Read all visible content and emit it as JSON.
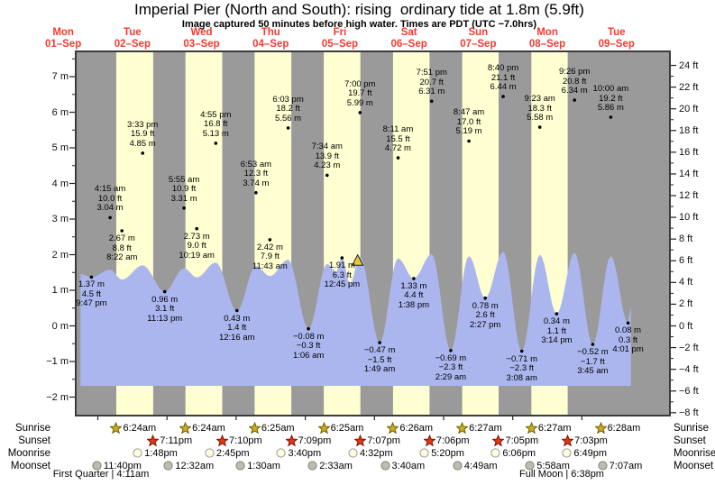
{
  "title": "Imperial Pier (North and South): rising  ordinary tide at 1.8m (5.9ft)",
  "subtitle": "Image captured 50 minutes before high water. Times are PDT (UTC −7.0hrs)",
  "colors": {
    "night_band": "#9a9a9a",
    "day_band": "#ffffd2",
    "tide_fill": "#abb6ef",
    "date_red": "#f23b30",
    "sun_star": "#cfae1d",
    "sunset_star": "#e23614",
    "moonrise_fill": "#ffffe0",
    "moonset_fill": "#bdbdae",
    "now_marker": "#e9c93a"
  },
  "chart_data": {
    "type": "area",
    "title": "Imperial Pier (North and South): rising  ordinary tide at 1.8m (5.9ft)",
    "ylabel_left": "meters",
    "ylabel_right": "feet",
    "ylim_m": [
      -2.4,
      7.7
    ],
    "grid": false,
    "x_axis_days": [
      {
        "name": "Mon",
        "date": "01–Sep"
      },
      {
        "name": "Tue",
        "date": "02–Sep"
      },
      {
        "name": "Wed",
        "date": "03–Sep"
      },
      {
        "name": "Thu",
        "date": "04–Sep"
      },
      {
        "name": "Fri",
        "date": "05–Sep"
      },
      {
        "name": "Sat",
        "date": "06–Sep"
      },
      {
        "name": "Sun",
        "date": "07–Sep"
      },
      {
        "name": "Mon",
        "date": "08–Sep"
      },
      {
        "name": "Tue",
        "date": "09–Sep"
      }
    ],
    "y_axis_m": [
      {
        "v": 7,
        "label": "7 m"
      },
      {
        "v": 6,
        "label": "6 m"
      },
      {
        "v": 5,
        "label": "5 m"
      },
      {
        "v": 4,
        "label": "4 m"
      },
      {
        "v": 3,
        "label": "3 m"
      },
      {
        "v": 2,
        "label": "2 m"
      },
      {
        "v": 1,
        "label": "1 m"
      },
      {
        "v": 0,
        "label": "0 m"
      },
      {
        "v": -1,
        "label": "−1 m"
      },
      {
        "v": -2,
        "label": "−2 m"
      }
    ],
    "y_axis_ft": [
      {
        "v": 24,
        "label": "24 ft"
      },
      {
        "v": 22,
        "label": "22 ft"
      },
      {
        "v": 20,
        "label": "20 ft"
      },
      {
        "v": 18,
        "label": "18 ft"
      },
      {
        "v": 16,
        "label": "16 ft"
      },
      {
        "v": 14,
        "label": "14 ft"
      },
      {
        "v": 12,
        "label": "12 ft"
      },
      {
        "v": 10,
        "label": "10 ft"
      },
      {
        "v": 8,
        "label": "8 ft"
      },
      {
        "v": 6,
        "label": "6 ft"
      },
      {
        "v": 4,
        "label": "4 ft"
      },
      {
        "v": 2,
        "label": "2 ft"
      },
      {
        "v": 0,
        "label": "0 ft"
      },
      {
        "v": -2,
        "label": "−2 ft"
      },
      {
        "v": -4,
        "label": "−4 ft"
      },
      {
        "v": -6,
        "label": "−6 ft"
      },
      {
        "v": -8,
        "label": "−8 ft"
      }
    ],
    "points": [
      {
        "day": 1,
        "time": "9:47 pm",
        "ft_label": "4.5 ft",
        "m_label": "1.37 m",
        "m": 1.37,
        "kind": "L"
      },
      {
        "day": 2,
        "time": "4:15 am",
        "ft_label": "10.0 ft",
        "m_label": "3.04 m",
        "m": 3.04,
        "kind": "H"
      },
      {
        "day": 2,
        "time": "8:22 am",
        "ft_label": "8.8 ft",
        "m_label": "2.67 m",
        "m": 2.67,
        "kind": "L"
      },
      {
        "day": 2,
        "time": "3:33 pm",
        "ft_label": "15.9 ft",
        "m_label": "4.85 m",
        "m": 4.85,
        "kind": "H"
      },
      {
        "day": 2,
        "time": "11:13 pm",
        "ft_label": "3.1 ft",
        "m_label": "0.96 m",
        "m": 0.96,
        "kind": "L"
      },
      {
        "day": 3,
        "time": "5:55 am",
        "ft_label": "10.9 ft",
        "m_label": "3.31 m",
        "m": 3.31,
        "kind": "H"
      },
      {
        "day": 3,
        "time": "10:19 am",
        "ft_label": "9.0 ft",
        "m_label": "2.73 m",
        "m": 2.73,
        "kind": "L"
      },
      {
        "day": 3,
        "time": "4:55 pm",
        "ft_label": "16.8 ft",
        "m_label": "5.13 m",
        "m": 5.13,
        "kind": "H"
      },
      {
        "day": 4,
        "time": "12:16 am",
        "ft_label": "1.4 ft",
        "m_label": "0.43 m",
        "m": 0.43,
        "kind": "L"
      },
      {
        "day": 4,
        "time": "6:53 am",
        "ft_label": "12.3 ft",
        "m_label": "3.74 m",
        "m": 3.74,
        "kind": "H"
      },
      {
        "day": 4,
        "time": "11:43 am",
        "ft_label": "7.9 ft",
        "m_label": "2.42 m",
        "m": 2.42,
        "kind": "L"
      },
      {
        "day": 4,
        "time": "6:03 pm",
        "ft_label": "18.2 ft",
        "m_label": "5.56 m",
        "m": 5.56,
        "kind": "H"
      },
      {
        "day": 5,
        "time": "1:06 am",
        "ft_label": "−0.3 ft",
        "m_label": "−0.08 m",
        "m": -0.08,
        "kind": "L"
      },
      {
        "day": 5,
        "time": "7:34 am",
        "ft_label": "13.9 ft",
        "m_label": "4.23 m",
        "m": 4.23,
        "kind": "H"
      },
      {
        "day": 5,
        "time": "12:45 pm",
        "ft_label": "6.3 ft",
        "m_label": "1.91 m",
        "m": 1.91,
        "kind": "L"
      },
      {
        "day": 5,
        "time": "7:00 pm",
        "ft_label": "19.7 ft",
        "m_label": "5.99 m",
        "m": 5.99,
        "kind": "H"
      },
      {
        "day": 6,
        "time": "1:49 am",
        "ft_label": "−1.5 ft",
        "m_label": "−0.47 m",
        "m": -0.47,
        "kind": "L"
      },
      {
        "day": 6,
        "time": "8:11 am",
        "ft_label": "15.5 ft",
        "m_label": "4.72 m",
        "m": 4.72,
        "kind": "H"
      },
      {
        "day": 6,
        "time": "1:38 pm",
        "ft_label": "4.4 ft",
        "m_label": "1.33 m",
        "m": 1.33,
        "kind": "L"
      },
      {
        "day": 6,
        "time": "7:51 pm",
        "ft_label": "20.7 ft",
        "m_label": "6.31 m",
        "m": 6.31,
        "kind": "H"
      },
      {
        "day": 7,
        "time": "2:29 am",
        "ft_label": "−2.3 ft",
        "m_label": "−0.69 m",
        "m": -0.69,
        "kind": "L"
      },
      {
        "day": 7,
        "time": "8:47 am",
        "ft_label": "17.0 ft",
        "m_label": "5.19 m",
        "m": 5.19,
        "kind": "H"
      },
      {
        "day": 7,
        "time": "2:27 pm",
        "ft_label": "2.6 ft",
        "m_label": "0.78 m",
        "m": 0.78,
        "kind": "L"
      },
      {
        "day": 7,
        "time": "8:40 pm",
        "ft_label": "21.1 ft",
        "m_label": "6.44 m",
        "m": 6.44,
        "kind": "H"
      },
      {
        "day": 8,
        "time": "3:08 am",
        "ft_label": "−2.3 ft",
        "m_label": "−0.71 m",
        "m": -0.71,
        "kind": "L"
      },
      {
        "day": 8,
        "time": "9:23 am",
        "ft_label": "18.3 ft",
        "m_label": "5.58 m",
        "m": 5.58,
        "kind": "H"
      },
      {
        "day": 8,
        "time": "3:14 pm",
        "ft_label": "1.1 ft",
        "m_label": "0.34 m",
        "m": 0.34,
        "kind": "L"
      },
      {
        "day": 8,
        "time": "9:26 pm",
        "ft_label": "20.8 ft",
        "m_label": "6.34 m",
        "m": 6.34,
        "kind": "H"
      },
      {
        "day": 9,
        "time": "3:45 am",
        "ft_label": "−1.7 ft",
        "m_label": "−0.52 m",
        "m": -0.52,
        "kind": "L"
      },
      {
        "day": 9,
        "time": "10:00 am",
        "ft_label": "19.2 ft",
        "m_label": "5.86 m",
        "m": 5.86,
        "kind": "H"
      },
      {
        "day": 9,
        "time": "4:01 pm",
        "ft_label": "0.3 ft",
        "m_label": "0.08 m",
        "m": 0.08,
        "kind": "L"
      }
    ],
    "curve_profile": [
      [
        1,
        18.0,
        1.45
      ],
      [
        1,
        21.78,
        1.37
      ],
      [
        2,
        4.25,
        1.58
      ],
      [
        2,
        8.37,
        1.3
      ],
      [
        2,
        15.55,
        1.7
      ],
      [
        2,
        23.22,
        0.96
      ],
      [
        3,
        5.92,
        1.62
      ],
      [
        3,
        10.32,
        1.36
      ],
      [
        3,
        16.92,
        1.78
      ],
      [
        4,
        0.27,
        0.43
      ],
      [
        4,
        6.88,
        1.68
      ],
      [
        4,
        11.72,
        1.4
      ],
      [
        4,
        18.05,
        1.86
      ],
      [
        5,
        1.1,
        -0.08
      ],
      [
        5,
        7.57,
        1.74
      ],
      [
        5,
        10.8,
        1.52
      ],
      [
        5,
        12.75,
        1.93
      ],
      [
        5,
        15.5,
        1.18
      ],
      [
        5,
        19.0,
        1.95
      ],
      [
        6,
        1.82,
        -0.47
      ],
      [
        6,
        8.18,
        1.9
      ],
      [
        6,
        13.63,
        1.33
      ],
      [
        6,
        19.85,
        2.02
      ],
      [
        7,
        2.48,
        -0.69
      ],
      [
        7,
        8.78,
        1.96
      ],
      [
        7,
        14.45,
        0.78
      ],
      [
        7,
        20.67,
        2.08
      ],
      [
        8,
        3.13,
        -0.71
      ],
      [
        8,
        9.38,
        2.0
      ],
      [
        8,
        15.23,
        0.34
      ],
      [
        8,
        21.43,
        2.06
      ],
      [
        9,
        3.75,
        -0.52
      ],
      [
        9,
        10.0,
        1.96
      ],
      [
        9,
        16.02,
        0.08
      ],
      [
        9,
        17.0,
        0.55
      ]
    ],
    "now_marker": {
      "day": 5,
      "h": 18.17,
      "m": 1.83
    },
    "sun_moon": {
      "row_labels": [
        "Sunrise",
        "Sunset",
        "Moonrise",
        "Moonset"
      ],
      "sunrise": [
        {
          "day": 2,
          "time": "6:24am"
        },
        {
          "day": 3,
          "time": "6:24am"
        },
        {
          "day": 4,
          "time": "6:25am"
        },
        {
          "day": 5,
          "time": "6:25am"
        },
        {
          "day": 6,
          "time": "6:26am"
        },
        {
          "day": 7,
          "time": "6:27am"
        },
        {
          "day": 8,
          "time": "6:27am"
        },
        {
          "day": 9,
          "time": "6:28am"
        }
      ],
      "sunset": [
        {
          "day": 2,
          "time": "7:11pm"
        },
        {
          "day": 3,
          "time": "7:10pm"
        },
        {
          "day": 4,
          "time": "7:09pm"
        },
        {
          "day": 5,
          "time": "7:07pm"
        },
        {
          "day": 6,
          "time": "7:06pm"
        },
        {
          "day": 7,
          "time": "7:05pm"
        },
        {
          "day": 8,
          "time": "7:03pm"
        }
      ],
      "moonrise": [
        {
          "day": 2,
          "time": "1:48pm"
        },
        {
          "day": 3,
          "time": "2:45pm"
        },
        {
          "day": 4,
          "time": "3:40pm"
        },
        {
          "day": 5,
          "time": "4:32pm"
        },
        {
          "day": 6,
          "time": "5:20pm"
        },
        {
          "day": 7,
          "time": "6:06pm"
        },
        {
          "day": 8,
          "time": "6:49pm"
        }
      ],
      "moonset": [
        {
          "day": 1,
          "time": "11:40pm"
        },
        {
          "day": 3,
          "time": "12:32am"
        },
        {
          "day": 4,
          "time": "1:30am"
        },
        {
          "day": 5,
          "time": "2:33am"
        },
        {
          "day": 6,
          "time": "3:40am"
        },
        {
          "day": 7,
          "time": "4:49am"
        },
        {
          "day": 8,
          "time": "5:58am"
        },
        {
          "day": 9,
          "time": "7:07am"
        }
      ]
    },
    "notes": [
      "First Quarter | 4:11am",
      "Full Moon | 6:38pm"
    ]
  }
}
